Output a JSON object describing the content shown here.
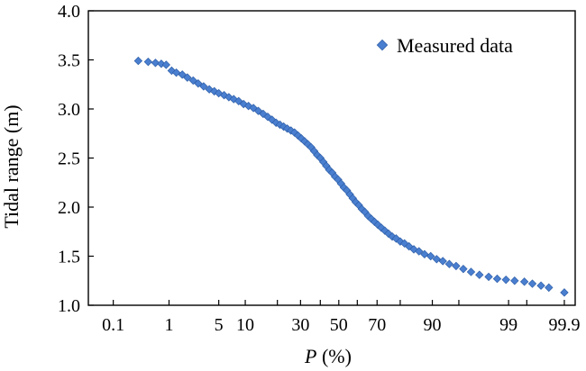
{
  "chart_data": {
    "type": "scatter",
    "xscale": "normal-probability",
    "xlabel_italic": "P",
    "xlabel_rest": " (%)",
    "ylabel": "Tidal range (m)",
    "ylim": [
      1.0,
      4.0
    ],
    "yticks": [
      "1.0",
      "1.5",
      "2.0",
      "2.5",
      "3.0",
      "3.5",
      "4.0"
    ],
    "xticks": [
      {
        "p": 0.1,
        "label": "0.1"
      },
      {
        "p": 1,
        "label": "1"
      },
      {
        "p": 5,
        "label": "5"
      },
      {
        "p": 10,
        "label": "10"
      },
      {
        "p": 30,
        "label": "30"
      },
      {
        "p": 50,
        "label": "50"
      },
      {
        "p": 70,
        "label": "70"
      },
      {
        "p": 90,
        "label": "90"
      },
      {
        "p": 99,
        "label": "99"
      },
      {
        "p": 99.9,
        "label": "99.9"
      }
    ],
    "minor_xticks": [
      20,
      40,
      60,
      80,
      95,
      99.5
    ],
    "grid": false,
    "legend_position": "top-right",
    "marker_color": "#4a7fd0",
    "series": [
      {
        "name": "Measured data",
        "marker": "diamond",
        "points": [
          [
            0.3,
            3.49
          ],
          [
            0.45,
            3.48
          ],
          [
            0.6,
            3.47
          ],
          [
            0.75,
            3.46
          ],
          [
            0.9,
            3.45
          ],
          [
            1.1,
            3.39
          ],
          [
            1.3,
            3.37
          ],
          [
            1.6,
            3.35
          ],
          [
            1.9,
            3.32
          ],
          [
            2.3,
            3.29
          ],
          [
            2.7,
            3.26
          ],
          [
            3.2,
            3.23
          ],
          [
            3.8,
            3.2
          ],
          [
            4.4,
            3.18
          ],
          [
            5.0,
            3.16
          ],
          [
            5.8,
            3.14
          ],
          [
            6.6,
            3.12
          ],
          [
            7.5,
            3.1
          ],
          [
            8.5,
            3.08
          ],
          [
            9.6,
            3.05
          ],
          [
            10.8,
            3.03
          ],
          [
            12.1,
            3.01
          ],
          [
            13.5,
            2.98
          ],
          [
            15.0,
            2.95
          ],
          [
            16.5,
            2.92
          ],
          [
            18.0,
            2.89
          ],
          [
            19.5,
            2.86
          ],
          [
            21.0,
            2.84
          ],
          [
            22.5,
            2.82
          ],
          [
            24.0,
            2.8
          ],
          [
            25.6,
            2.78
          ],
          [
            27.2,
            2.76
          ],
          [
            28.8,
            2.73
          ],
          [
            30.4,
            2.7
          ],
          [
            32.0,
            2.67
          ],
          [
            33.6,
            2.64
          ],
          [
            35.2,
            2.61
          ],
          [
            36.8,
            2.57
          ],
          [
            38.4,
            2.53
          ],
          [
            40.0,
            2.5
          ],
          [
            41.6,
            2.46
          ],
          [
            43.2,
            2.42
          ],
          [
            44.8,
            2.38
          ],
          [
            46.4,
            2.35
          ],
          [
            48.0,
            2.31
          ],
          [
            49.6,
            2.28
          ],
          [
            51.2,
            2.24
          ],
          [
            52.8,
            2.2
          ],
          [
            54.4,
            2.17
          ],
          [
            56.0,
            2.13
          ],
          [
            57.6,
            2.09
          ],
          [
            59.2,
            2.05
          ],
          [
            60.8,
            2.02
          ],
          [
            62.4,
            1.98
          ],
          [
            64.0,
            1.95
          ],
          [
            65.6,
            1.91
          ],
          [
            67.2,
            1.88
          ],
          [
            68.8,
            1.85
          ],
          [
            70.4,
            1.82
          ],
          [
            72.0,
            1.79
          ],
          [
            73.6,
            1.76
          ],
          [
            75.2,
            1.73
          ],
          [
            76.8,
            1.7
          ],
          [
            78.4,
            1.68
          ],
          [
            80.0,
            1.65
          ],
          [
            81.6,
            1.63
          ],
          [
            83.2,
            1.6
          ],
          [
            84.8,
            1.57
          ],
          [
            86.4,
            1.55
          ],
          [
            88.0,
            1.52
          ],
          [
            89.6,
            1.5
          ],
          [
            91.0,
            1.47
          ],
          [
            92.3,
            1.45
          ],
          [
            93.5,
            1.42
          ],
          [
            94.6,
            1.4
          ],
          [
            95.6,
            1.37
          ],
          [
            96.5,
            1.34
          ],
          [
            97.3,
            1.31
          ],
          [
            98.0,
            1.29
          ],
          [
            98.5,
            1.27
          ],
          [
            98.9,
            1.26
          ],
          [
            99.2,
            1.25
          ],
          [
            99.45,
            1.24
          ],
          [
            99.6,
            1.22
          ],
          [
            99.72,
            1.2
          ],
          [
            99.8,
            1.18
          ],
          [
            99.9,
            1.13
          ]
        ]
      }
    ]
  }
}
